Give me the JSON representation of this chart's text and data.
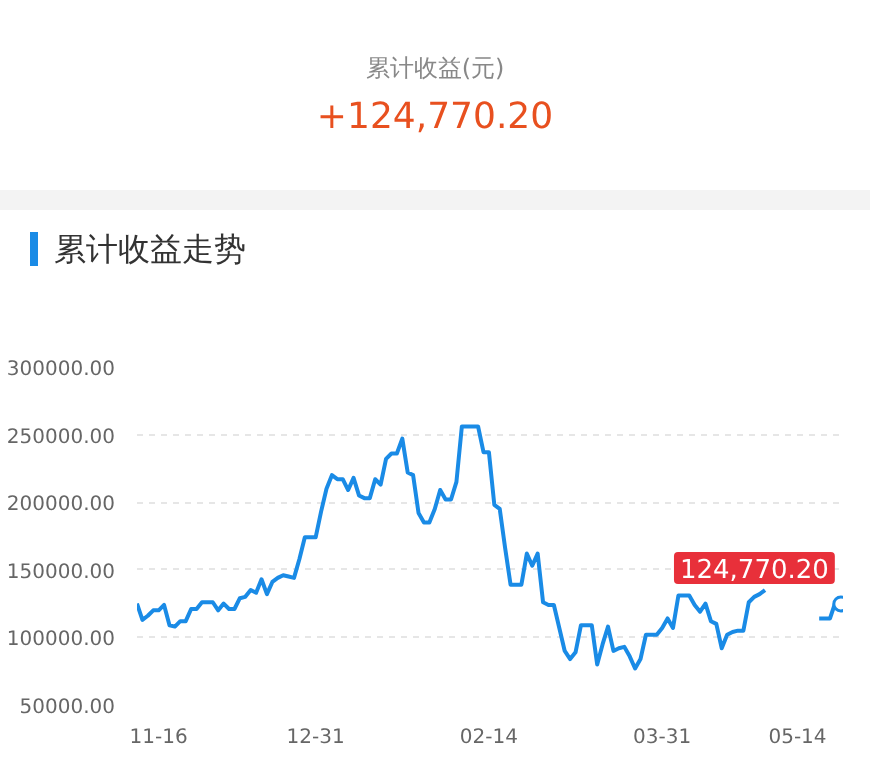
{
  "chart_data": {
    "type": "line",
    "title": "累计收益走势",
    "annotations": [
      "累计收益(元)",
      "+124,770.20"
    ],
    "categories": [
      null,
      null,
      null,
      null,
      "11-16",
      null,
      null,
      null,
      null,
      null,
      null,
      null,
      null,
      null,
      null,
      null,
      null,
      null,
      null,
      null,
      null,
      null,
      null,
      null,
      null,
      null,
      null,
      null,
      null,
      null,
      null,
      null,
      null,
      "12-31",
      null,
      null,
      null,
      null,
      null,
      null,
      null,
      null,
      null,
      null,
      null,
      null,
      null,
      null,
      null,
      null,
      null,
      null,
      null,
      null,
      null,
      null,
      null,
      null,
      null,
      null,
      null,
      null,
      null,
      null,
      null,
      "02-14",
      null,
      null,
      null,
      null,
      null,
      null,
      null,
      null,
      null,
      null,
      null,
      null,
      null,
      null,
      null,
      null,
      null,
      null,
      null,
      null,
      null,
      null,
      null,
      null,
      null,
      null,
      null,
      null,
      null,
      null,
      null,
      "03-31",
      null,
      null,
      null,
      null,
      null,
      null,
      null,
      null,
      null,
      null,
      null,
      null,
      null,
      null,
      null,
      null,
      null,
      null,
      null,
      null,
      null,
      null,
      null,
      null,
      "05-14",
      null,
      null,
      null,
      null,
      null,
      null,
      null,
      null
    ],
    "series": [
      {
        "color": "#1a8be6",
        "values": [
          125000,
          113000,
          116000,
          120000,
          120000,
          124000,
          109000,
          108000,
          112000,
          112000,
          121000,
          121000,
          126000,
          126000,
          126000,
          120000,
          125000,
          121000,
          121000,
          129000,
          130000,
          135000,
          133000,
          143000,
          132000,
          141000,
          144000,
          146000,
          145000,
          144000,
          158000,
          174000,
          174000,
          174000,
          193000,
          210000,
          220000,
          217000,
          217000,
          209000,
          218000,
          205000,
          203000,
          203000,
          217000,
          213000,
          232000,
          236000,
          236000,
          247000,
          222000,
          220000,
          192000,
          185000,
          185000,
          195000,
          209000,
          202000,
          202000,
          215000,
          256000,
          256000,
          256000,
          256000,
          237000,
          237000,
          198000,
          195000,
          166000,
          139000,
          139000,
          139000,
          162000,
          153000,
          162000,
          126000,
          124000,
          124000,
          107000,
          90000,
          84000,
          89000,
          109000,
          109000,
          109000,
          80000,
          95000,
          108000,
          90000,
          92000,
          93000,
          86000,
          77000,
          84000,
          102000,
          102000,
          102000,
          107000,
          114000,
          107000,
          131000,
          131000,
          131000,
          124000,
          119000,
          125000,
          112000,
          110000,
          92000,
          102000,
          104000,
          105000,
          105000,
          126000,
          130000,
          132000,
          135000,
          null,
          null,
          null,
          null,
          null,
          null,
          null,
          null,
          null,
          114000,
          114000,
          114000,
          126000,
          124770.2
        ],
        "value_labels": [
          null,
          null,
          null,
          null,
          null,
          null,
          null,
          null,
          null,
          null,
          null,
          null,
          null,
          null,
          null,
          null,
          null,
          null,
          null,
          null,
          null,
          null,
          null,
          null,
          null,
          null,
          null,
          null,
          null,
          null,
          null,
          null,
          null,
          null,
          null,
          null,
          null,
          null,
          null,
          null,
          null,
          null,
          null,
          null,
          null,
          null,
          null,
          null,
          null,
          null,
          null,
          null,
          null,
          null,
          null,
          null,
          null,
          null,
          null,
          null,
          null,
          null,
          null,
          null,
          null,
          null,
          null,
          null,
          null,
          null,
          null,
          null,
          null,
          null,
          null,
          null,
          null,
          null,
          null,
          null,
          null,
          null,
          null,
          null,
          null,
          null,
          null,
          null,
          null,
          null,
          null,
          null,
          null,
          null,
          null,
          null,
          null,
          null,
          null,
          null,
          null,
          null,
          null,
          null,
          null,
          null,
          null,
          null,
          null,
          null,
          null,
          null,
          null,
          null,
          null,
          null,
          null,
          null,
          null,
          null,
          null,
          null,
          null,
          null,
          null,
          null,
          null,
          null,
          null,
          null,
          "124,770.20"
        ]
      }
    ],
    "ylim": [
      50000,
      300000
    ],
    "yticks": [
      {
        "value": 50000,
        "label": "50000.00"
      },
      {
        "value": 100000,
        "label": "100000.00"
      },
      {
        "value": 150000,
        "label": "150000.00"
      },
      {
        "value": 200000,
        "label": "200000.00"
      },
      {
        "value": 250000,
        "label": "250000.00"
      },
      {
        "value": 300000,
        "label": "300000.00"
      }
    ],
    "grid": "y"
  }
}
